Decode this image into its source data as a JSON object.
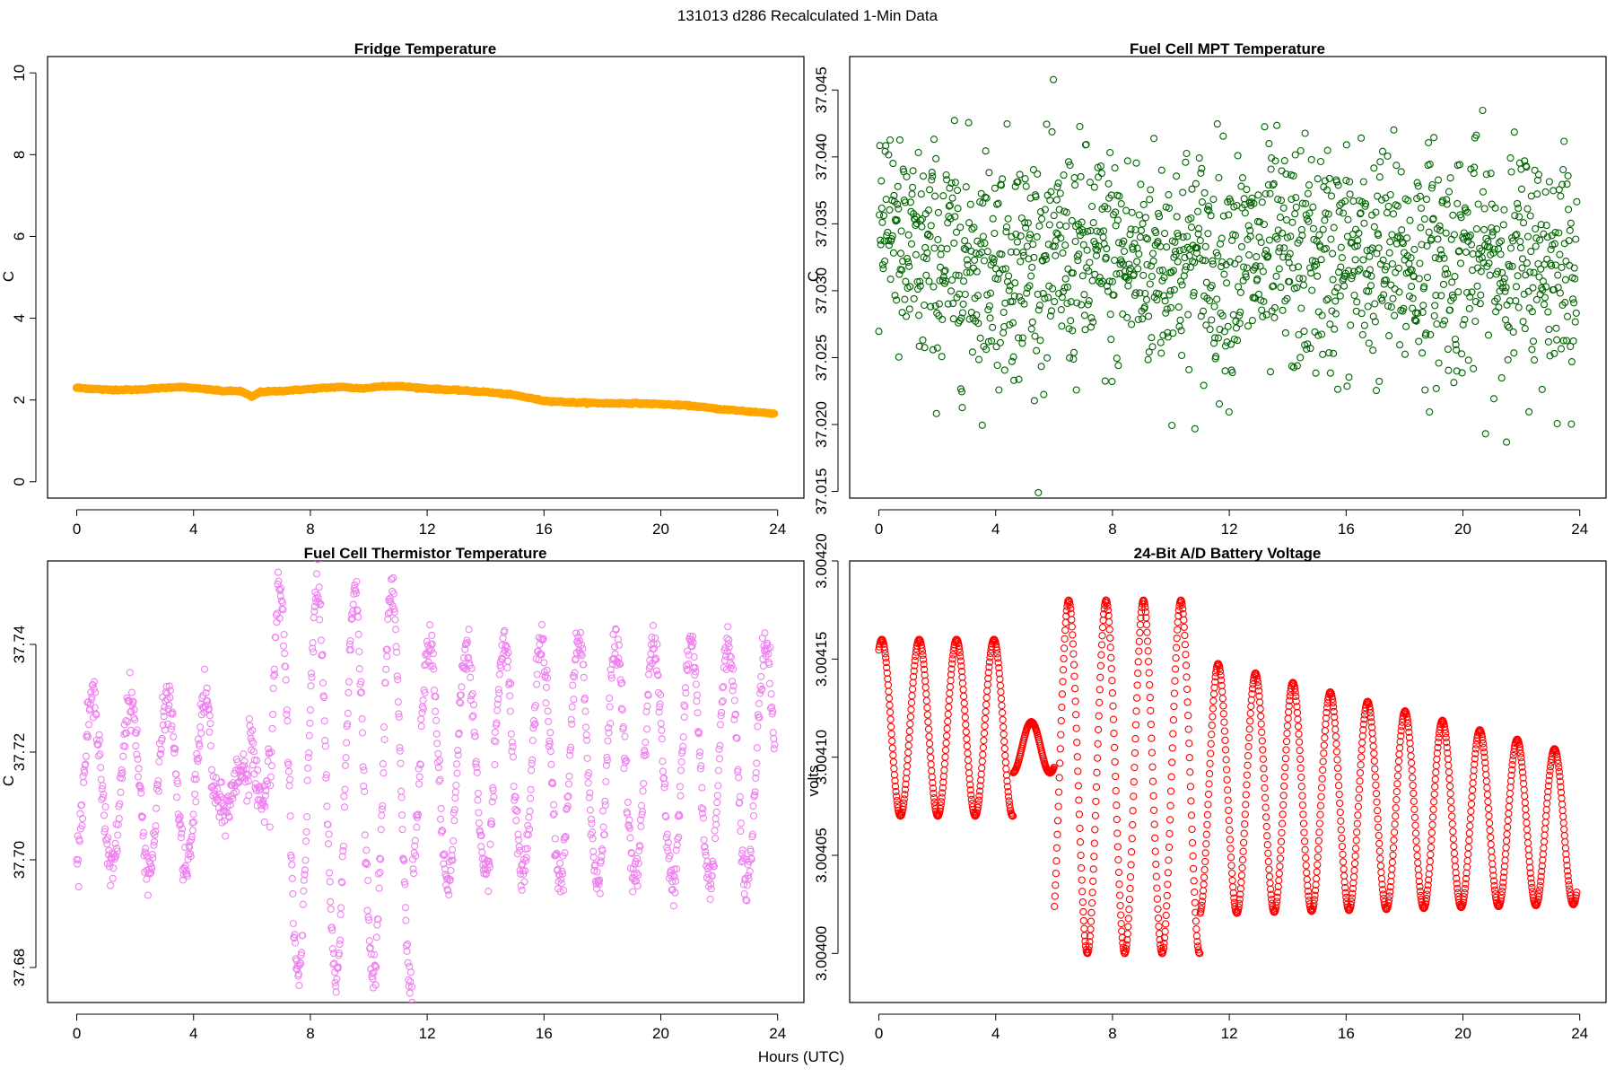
{
  "figure": {
    "title": "131013   d286   Recalculated 1-Min Data",
    "xlabel": "Hours (UTC)"
  },
  "chart_data": [
    {
      "type": "scatter",
      "id": "fridge",
      "title": "Fridge Temperature",
      "xlabel": "",
      "ylabel": "C",
      "xlim": [
        -1.0,
        24.9
      ],
      "ylim": [
        -0.4,
        10.4
      ],
      "xticks": [
        0,
        4,
        8,
        12,
        16,
        20,
        24
      ],
      "yticks": [
        0,
        2,
        4,
        6,
        8,
        10
      ],
      "yticklabels": [
        "0",
        "2",
        "4",
        "6",
        "8",
        "10"
      ],
      "color": "#FFA500",
      "filled": true,
      "marker_size": 4.2,
      "generator": {
        "kind": "piecewise",
        "step_hours": 0.0333,
        "knots": [
          [
            0,
            2.3
          ],
          [
            1,
            2.25
          ],
          [
            2,
            2.25
          ],
          [
            3.5,
            2.32
          ],
          [
            4.5,
            2.26
          ],
          [
            5,
            2.22
          ],
          [
            5.6,
            2.22
          ],
          [
            6.0,
            2.08
          ],
          [
            6.3,
            2.2
          ],
          [
            7,
            2.22
          ],
          [
            9,
            2.32
          ],
          [
            9.8,
            2.28
          ],
          [
            10.5,
            2.34
          ],
          [
            11,
            2.34
          ],
          [
            12,
            2.28
          ],
          [
            14,
            2.2
          ],
          [
            15,
            2.12
          ],
          [
            16,
            1.98
          ],
          [
            17,
            1.94
          ],
          [
            18,
            1.92
          ],
          [
            19,
            1.92
          ],
          [
            20,
            1.9
          ],
          [
            21,
            1.86
          ],
          [
            22,
            1.78
          ],
          [
            23,
            1.72
          ],
          [
            24,
            1.66
          ]
        ],
        "noise": 0.008
      }
    },
    {
      "type": "scatter",
      "id": "mpt",
      "title": "Fuel Cell MPT Temperature",
      "xlabel": "",
      "ylabel": "C",
      "xlim": [
        -1.0,
        24.9
      ],
      "ylim": [
        37.0145,
        37.0475
      ],
      "xticks": [
        0,
        4,
        8,
        12,
        16,
        20,
        24
      ],
      "yticks": [
        37.015,
        37.02,
        37.025,
        37.03,
        37.035,
        37.04,
        37.045
      ],
      "yticklabels": [
        "37.015",
        "37.020",
        "37.025",
        "37.030",
        "37.035",
        "37.040",
        "37.045"
      ],
      "color": "#006400",
      "filled": false,
      "marker_size": 3.5,
      "generator": {
        "kind": "noise",
        "step_hours": 0.0167,
        "mean": 37.0322,
        "sd": 0.0043,
        "early_mean": 37.036,
        "early_until": 0.6
      }
    },
    {
      "type": "scatter",
      "id": "thermistor",
      "title": "Fuel Cell Thermistor Temperature",
      "xlabel": "",
      "ylabel": "C",
      "xlim": [
        -1.0,
        24.9
      ],
      "ylim": [
        37.6735,
        37.7555
      ],
      "xticks": [
        0,
        4,
        8,
        12,
        16,
        20,
        24
      ],
      "yticks": [
        37.68,
        37.7,
        37.72,
        37.74
      ],
      "yticklabels": [
        "37.68",
        "37.70",
        "37.72",
        "37.74"
      ],
      "color": "#EE82EE",
      "filled": false,
      "marker_size": 3.5,
      "generator": {
        "kind": "oscillation",
        "step_hours": 0.0167,
        "period_hours": 1.28,
        "segments": [
          {
            "x0": 0,
            "x1": 4.6,
            "center": 37.714,
            "amp": 0.016
          },
          {
            "x0": 4.6,
            "x1": 5.9,
            "center": 37.713,
            "amp": 0.004
          },
          {
            "x0": 5.9,
            "x1": 6.6,
            "center": 37.722,
            "amp": 0.012
          },
          {
            "x0": 6.6,
            "x1": 11.5,
            "center": 37.714,
            "amp": 0.036
          },
          {
            "x0": 11.5,
            "x1": 24,
            "center": 37.718,
            "amp": 0.022
          }
        ],
        "noise": 0.002
      }
    },
    {
      "type": "scatter",
      "id": "battery",
      "title": "24-Bit A/D Battery Voltage",
      "xlabel": "",
      "ylabel": "volts",
      "xlim": [
        -1.0,
        24.9
      ],
      "ylim": [
        3.003975,
        3.0042
      ],
      "xticks": [
        0,
        4,
        8,
        12,
        16,
        20,
        24
      ],
      "yticks": [
        3.004,
        3.00405,
        3.0041,
        3.00415,
        3.0042
      ],
      "yticklabels": [
        "3.00400",
        "3.00405",
        "3.00410",
        "3.00415",
        "3.00420"
      ],
      "color": "#FF0000",
      "filled": false,
      "marker_size": 3.6,
      "generator": {
        "kind": "oscillation",
        "step_hours": 0.0167,
        "period_hours": 1.28,
        "phase_peak_at": 0.1,
        "segments": [
          {
            "x0": 0,
            "x1": 4.6,
            "center": 3.004115,
            "amp": 4.5e-05
          },
          {
            "x0": 4.6,
            "x1": 6.0,
            "center": 3.004105,
            "amp": 1.3e-05
          },
          {
            "x0": 6.0,
            "x1": 11.0,
            "center": 3.00409,
            "amp": 9e-05
          },
          {
            "x0": 11.0,
            "x1": 24,
            "center": 3.004085,
            "amp": 6.5e-05,
            "amp_end": 3.8e-05,
            "center_end": 3.004063
          }
        ],
        "noise": 0.0
      }
    }
  ]
}
